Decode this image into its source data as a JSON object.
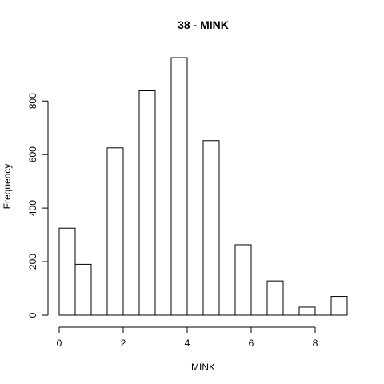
{
  "chart_data": {
    "type": "bar",
    "title": "38 - MINK",
    "xlabel": "MINK",
    "ylabel": "Frequency",
    "bin_width": 0.5,
    "bins": [
      {
        "start": 0.0,
        "value": 325
      },
      {
        "start": 0.5,
        "value": 190
      },
      {
        "start": 1.0,
        "value": 0
      },
      {
        "start": 1.5,
        "value": 625
      },
      {
        "start": 2.0,
        "value": 0
      },
      {
        "start": 2.5,
        "value": 838
      },
      {
        "start": 3.0,
        "value": 0
      },
      {
        "start": 3.5,
        "value": 962
      },
      {
        "start": 4.0,
        "value": 0
      },
      {
        "start": 4.5,
        "value": 652
      },
      {
        "start": 5.0,
        "value": 0
      },
      {
        "start": 5.5,
        "value": 263
      },
      {
        "start": 6.0,
        "value": 0
      },
      {
        "start": 6.5,
        "value": 128
      },
      {
        "start": 7.0,
        "value": 0
      },
      {
        "start": 7.5,
        "value": 30
      },
      {
        "start": 8.0,
        "value": 0
      },
      {
        "start": 8.5,
        "value": 70
      }
    ],
    "xlim": [
      0,
      9
    ],
    "ylim": [
      0,
      962
    ],
    "xticks": [
      {
        "value": 0,
        "label": "0"
      },
      {
        "value": 2,
        "label": "2"
      },
      {
        "value": 4,
        "label": "4"
      },
      {
        "value": 6,
        "label": "6"
      },
      {
        "value": 8,
        "label": "8"
      }
    ],
    "yticks": [
      {
        "value": 0,
        "label": "0"
      },
      {
        "value": 200,
        "label": "200"
      },
      {
        "value": 400,
        "label": "400"
      },
      {
        "value": 600,
        "label": "600"
      },
      {
        "value": 800,
        "label": "800"
      }
    ],
    "grid": false,
    "legend": "none"
  }
}
